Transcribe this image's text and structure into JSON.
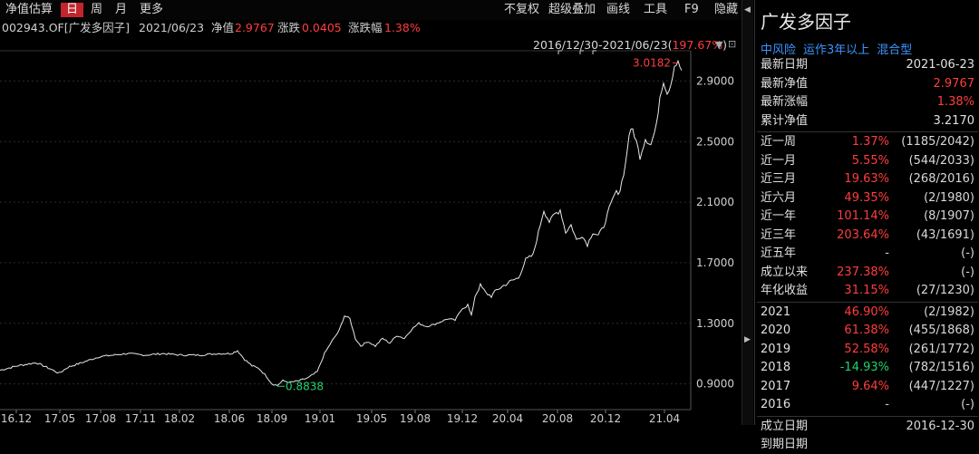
{
  "toolbar": {
    "items": [
      "净值估算",
      "日",
      "周",
      "月",
      "更多"
    ],
    "right_items": [
      "不复权",
      "超级叠加",
      "画线",
      "工具",
      "F9",
      "隐藏"
    ]
  },
  "info": {
    "code_name": "002943.OF[广发多因子]",
    "date": "2021/06/23",
    "nav_label": "净值",
    "nav_value": "2.9767",
    "change_label": "涨跌",
    "change_value": "0.0405",
    "pct_label": "涨跌幅",
    "pct_value": "1.38%"
  },
  "range": {
    "text": "2016/12/30-2021/06/23(",
    "pct": "197.67%",
    "close": ")"
  },
  "chart_data": {
    "type": "line",
    "x_ticks": [
      "16.12",
      "17.05",
      "17.08",
      "17.11",
      "18.02",
      "18.06",
      "18.09",
      "19.01",
      "19.05",
      "19.08",
      "19.12",
      "20.04",
      "20.08",
      "20.12",
      "21.04"
    ],
    "y_ticks": [
      "2.9000",
      "2.5000",
      "2.1000",
      "1.7000",
      "1.3000",
      "0.9000"
    ],
    "ylim": [
      0.73,
      3.1
    ],
    "max_label": "3.0182",
    "min_label": "0.8838",
    "points": [
      [
        0,
        0.99
      ],
      [
        20,
        1.02
      ],
      [
        40,
        1.04
      ],
      [
        55,
        1.0
      ],
      [
        65,
        0.97
      ],
      [
        75,
        1.01
      ],
      [
        90,
        1.04
      ],
      [
        100,
        1.06
      ],
      [
        110,
        1.08
      ],
      [
        125,
        1.09
      ],
      [
        140,
        1.1
      ],
      [
        160,
        1.09
      ],
      [
        180,
        1.1
      ],
      [
        200,
        1.09
      ],
      [
        220,
        1.09
      ],
      [
        240,
        1.1
      ],
      [
        255,
        1.1
      ],
      [
        262,
        1.12
      ],
      [
        270,
        1.06
      ],
      [
        278,
        1.02
      ],
      [
        286,
        1.0
      ],
      [
        294,
        0.95
      ],
      [
        300,
        0.9
      ],
      [
        306,
        0.89
      ],
      [
        312,
        0.92
      ],
      [
        320,
        0.91
      ],
      [
        330,
        0.92
      ],
      [
        340,
        0.94
      ],
      [
        350,
        0.98
      ],
      [
        358,
        1.1
      ],
      [
        366,
        1.18
      ],
      [
        374,
        1.25
      ],
      [
        380,
        1.35
      ],
      [
        386,
        1.33
      ],
      [
        392,
        1.2
      ],
      [
        398,
        1.15
      ],
      [
        406,
        1.18
      ],
      [
        414,
        1.15
      ],
      [
        422,
        1.2
      ],
      [
        430,
        1.17
      ],
      [
        438,
        1.22
      ],
      [
        446,
        1.2
      ],
      [
        454,
        1.26
      ],
      [
        462,
        1.3
      ],
      [
        470,
        1.28
      ],
      [
        478,
        1.29
      ],
      [
        486,
        1.31
      ],
      [
        494,
        1.33
      ],
      [
        502,
        1.32
      ],
      [
        510,
        1.4
      ],
      [
        516,
        1.42
      ],
      [
        520,
        1.35
      ],
      [
        524,
        1.48
      ],
      [
        530,
        1.55
      ],
      [
        536,
        1.5
      ],
      [
        542,
        1.48
      ],
      [
        548,
        1.52
      ],
      [
        556,
        1.55
      ],
      [
        564,
        1.58
      ],
      [
        572,
        1.6
      ],
      [
        580,
        1.72
      ],
      [
        588,
        1.75
      ],
      [
        594,
        1.9
      ],
      [
        600,
        2.05
      ],
      [
        606,
        1.97
      ],
      [
        612,
        2.02
      ],
      [
        618,
        2.05
      ],
      [
        624,
        1.9
      ],
      [
        630,
        1.95
      ],
      [
        636,
        1.85
      ],
      [
        642,
        1.88
      ],
      [
        648,
        1.82
      ],
      [
        654,
        1.9
      ],
      [
        660,
        1.88
      ],
      [
        666,
        1.94
      ],
      [
        672,
        2.05
      ],
      [
        678,
        2.15
      ],
      [
        684,
        2.18
      ],
      [
        690,
        2.35
      ],
      [
        694,
        2.55
      ],
      [
        698,
        2.58
      ],
      [
        702,
        2.5
      ],
      [
        706,
        2.4
      ],
      [
        712,
        2.52
      ],
      [
        718,
        2.48
      ],
      [
        724,
        2.6
      ],
      [
        728,
        2.8
      ],
      [
        732,
        2.9
      ],
      [
        736,
        2.82
      ],
      [
        740,
        2.88
      ],
      [
        744,
        3.0
      ],
      [
        748,
        3.02
      ],
      [
        752,
        2.97
      ]
    ]
  },
  "panel": {
    "title": "广发多因子",
    "tags": [
      "中风险",
      "运作3年以上",
      "混合型"
    ],
    "basic": [
      {
        "label": "最新日期",
        "value": "2021-06-23",
        "color": "#e0e0e0"
      },
      {
        "label": "最新净值",
        "value": "2.9767",
        "color": "#ff3d3d"
      },
      {
        "label": "最新涨幅",
        "value": "1.38%",
        "color": "#ff3d3d"
      },
      {
        "label": "累计净值",
        "value": "3.2170",
        "color": "#e0e0e0"
      }
    ],
    "periods": [
      {
        "label": "近一周",
        "value": "1.37%",
        "rank": "(1185/2042)",
        "color": "#ff3d3d"
      },
      {
        "label": "近一月",
        "value": "5.55%",
        "rank": "(544/2033)",
        "color": "#ff3d3d"
      },
      {
        "label": "近三月",
        "value": "19.63%",
        "rank": "(268/2016)",
        "color": "#ff3d3d"
      },
      {
        "label": "近六月",
        "value": "49.35%",
        "rank": "(2/1980)",
        "color": "#ff3d3d"
      },
      {
        "label": "近一年",
        "value": "101.14%",
        "rank": "(8/1907)",
        "color": "#ff3d3d"
      },
      {
        "label": "近三年",
        "value": "203.64%",
        "rank": "(43/1691)",
        "color": "#ff3d3d"
      },
      {
        "label": "近五年",
        "value": "-",
        "rank": "(-)",
        "color": "#cfcfcf"
      },
      {
        "label": "成立以来",
        "value": "237.38%",
        "rank": "(-)",
        "color": "#ff3d3d"
      },
      {
        "label": "年化收益",
        "value": "31.15%",
        "rank": "(27/1230)",
        "color": "#ff3d3d"
      }
    ],
    "years": [
      {
        "label": "2021",
        "value": "46.90%",
        "rank": "(2/1982)",
        "color": "#ff3d3d"
      },
      {
        "label": "2020",
        "value": "61.38%",
        "rank": "(455/1868)",
        "color": "#ff3d3d"
      },
      {
        "label": "2019",
        "value": "52.58%",
        "rank": "(261/1772)",
        "color": "#ff3d3d"
      },
      {
        "label": "2018",
        "value": "-14.93%",
        "rank": "(782/1516)",
        "color": "#1fd36a"
      },
      {
        "label": "2017",
        "value": "9.64%",
        "rank": "(447/1227)",
        "color": "#ff3d3d"
      },
      {
        "label": "2016",
        "value": "-",
        "rank": "(-)",
        "color": "#cfcfcf"
      }
    ],
    "dates": [
      {
        "label": "成立日期",
        "value": "2016-12-30"
      },
      {
        "label": "到期日期",
        "value": ""
      }
    ]
  }
}
